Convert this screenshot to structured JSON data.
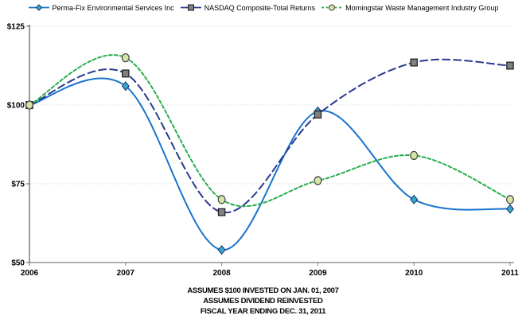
{
  "chart_data": {
    "type": "line",
    "title": "",
    "xlabel": "",
    "ylabel": "",
    "x_labels": [
      "2006",
      "2007",
      "2008",
      "2009",
      "2010",
      "2011"
    ],
    "ylim": [
      50,
      125
    ],
    "yticks": [
      {
        "value": 125,
        "label": "$125",
        "gridline": true
      },
      {
        "value": 100,
        "label": "$100",
        "gridline": true
      },
      {
        "value": 75,
        "label": "$75",
        "gridline": true
      },
      {
        "value": 50,
        "label": "$50",
        "gridline": false
      }
    ],
    "grid": "horizontal-dotted",
    "legend_position": "top-center",
    "smoothing": "spline",
    "series": [
      {
        "name": "Perma-Fix Environmental Services Inc",
        "values": [
          100,
          106,
          54,
          98,
          70,
          67
        ],
        "color": "#1874CD",
        "dash": "solid",
        "marker": "diamond",
        "marker_fill": "#38A6CE",
        "marker_stroke": "#17375E"
      },
      {
        "name": "NASDAQ Composite-Total Returns",
        "values": [
          100,
          110,
          66,
          97,
          113.5,
          112.5
        ],
        "color": "#2A3890",
        "dash": "9,5",
        "marker": "square",
        "marker_fill": "#808080",
        "marker_stroke": "#1A1A1A"
      },
      {
        "name": "Morningstar Waste Management Industry Group",
        "values": [
          100,
          115,
          70,
          76,
          84,
          70
        ],
        "color": "#27AE4B",
        "dash": "4,3",
        "marker": "circle",
        "marker_fill": "#D6E4A6",
        "marker_stroke": "#404040"
      }
    ],
    "style": {
      "y_axis_color": "#595959",
      "x_axis_color": "#808080",
      "grid_color": "#D9D9D9",
      "tick_label_color": "#000000"
    },
    "footnotes": [
      "ASSUMES $100 INVESTED ON JAN. 01, 2007",
      "ASSUMES DIVIDEND REINVESTED",
      "FISCAL YEAR ENDING DEC. 31, 2011"
    ]
  }
}
